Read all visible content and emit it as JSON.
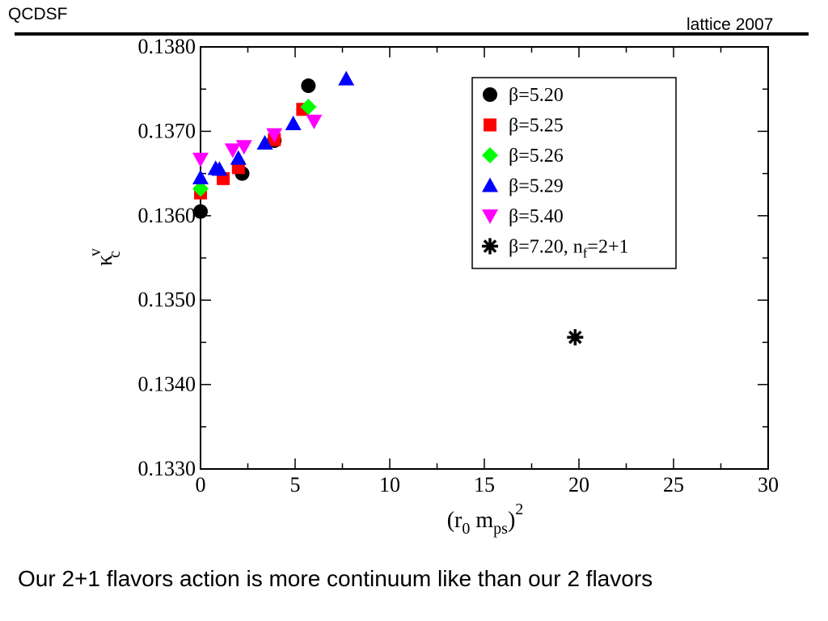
{
  "header": {
    "left": "QCDSF",
    "right": "lattice 2007"
  },
  "caption": "Our 2+1 flavors action is more continuum like than our 2 flavors",
  "chart_data": {
    "type": "scatter",
    "xlim": [
      0,
      30
    ],
    "ylim": [
      0.133,
      0.138
    ],
    "x_ticks": [
      "0",
      "5",
      "10",
      "15",
      "20",
      "25",
      "30"
    ],
    "y_ticks": [
      "0.1330",
      "0.1340",
      "0.1350",
      "0.1360",
      "0.1370",
      "0.1380"
    ],
    "xlabel": "(r0 mps)^2",
    "ylabel": "κc^v",
    "legend_position": "top-right",
    "series": [
      {
        "name": "β=5.20",
        "marker": "circle",
        "color": "#000000",
        "points": [
          [
            0.0,
            0.13605
          ],
          [
            2.2,
            0.1365
          ],
          [
            3.9,
            0.13689
          ],
          [
            5.7,
            0.13754
          ]
        ]
      },
      {
        "name": "β=5.25",
        "marker": "square",
        "color": "#ff0000",
        "points": [
          [
            0.0,
            0.13627
          ],
          [
            1.2,
            0.13644
          ],
          [
            2.0,
            0.13657
          ],
          [
            3.9,
            0.1369
          ],
          [
            5.4,
            0.13726
          ]
        ]
      },
      {
        "name": "β=5.26",
        "marker": "diamond",
        "color": "#00ff00",
        "points": [
          [
            0.0,
            0.13632
          ],
          [
            5.7,
            0.13729
          ]
        ]
      },
      {
        "name": "β=5.29",
        "marker": "triangle-up",
        "color": "#0000ff",
        "points": [
          [
            0.0,
            0.13645
          ],
          [
            0.8,
            0.13656
          ],
          [
            1.0,
            0.13655
          ],
          [
            2.0,
            0.13668
          ],
          [
            3.4,
            0.13686
          ],
          [
            4.9,
            0.13709
          ],
          [
            7.7,
            0.13762
          ]
        ]
      },
      {
        "name": "β=5.40",
        "marker": "triangle-down",
        "color": "#ff00ff",
        "points": [
          [
            0.0,
            0.13667
          ],
          [
            1.7,
            0.13678
          ],
          [
            2.3,
            0.13682
          ],
          [
            3.9,
            0.13696
          ],
          [
            6.0,
            0.13712
          ]
        ]
      },
      {
        "name": "β=7.20, nf=2+1",
        "marker": "star",
        "color": "#000000",
        "points": [
          [
            19.8,
            0.13456
          ]
        ]
      }
    ]
  }
}
